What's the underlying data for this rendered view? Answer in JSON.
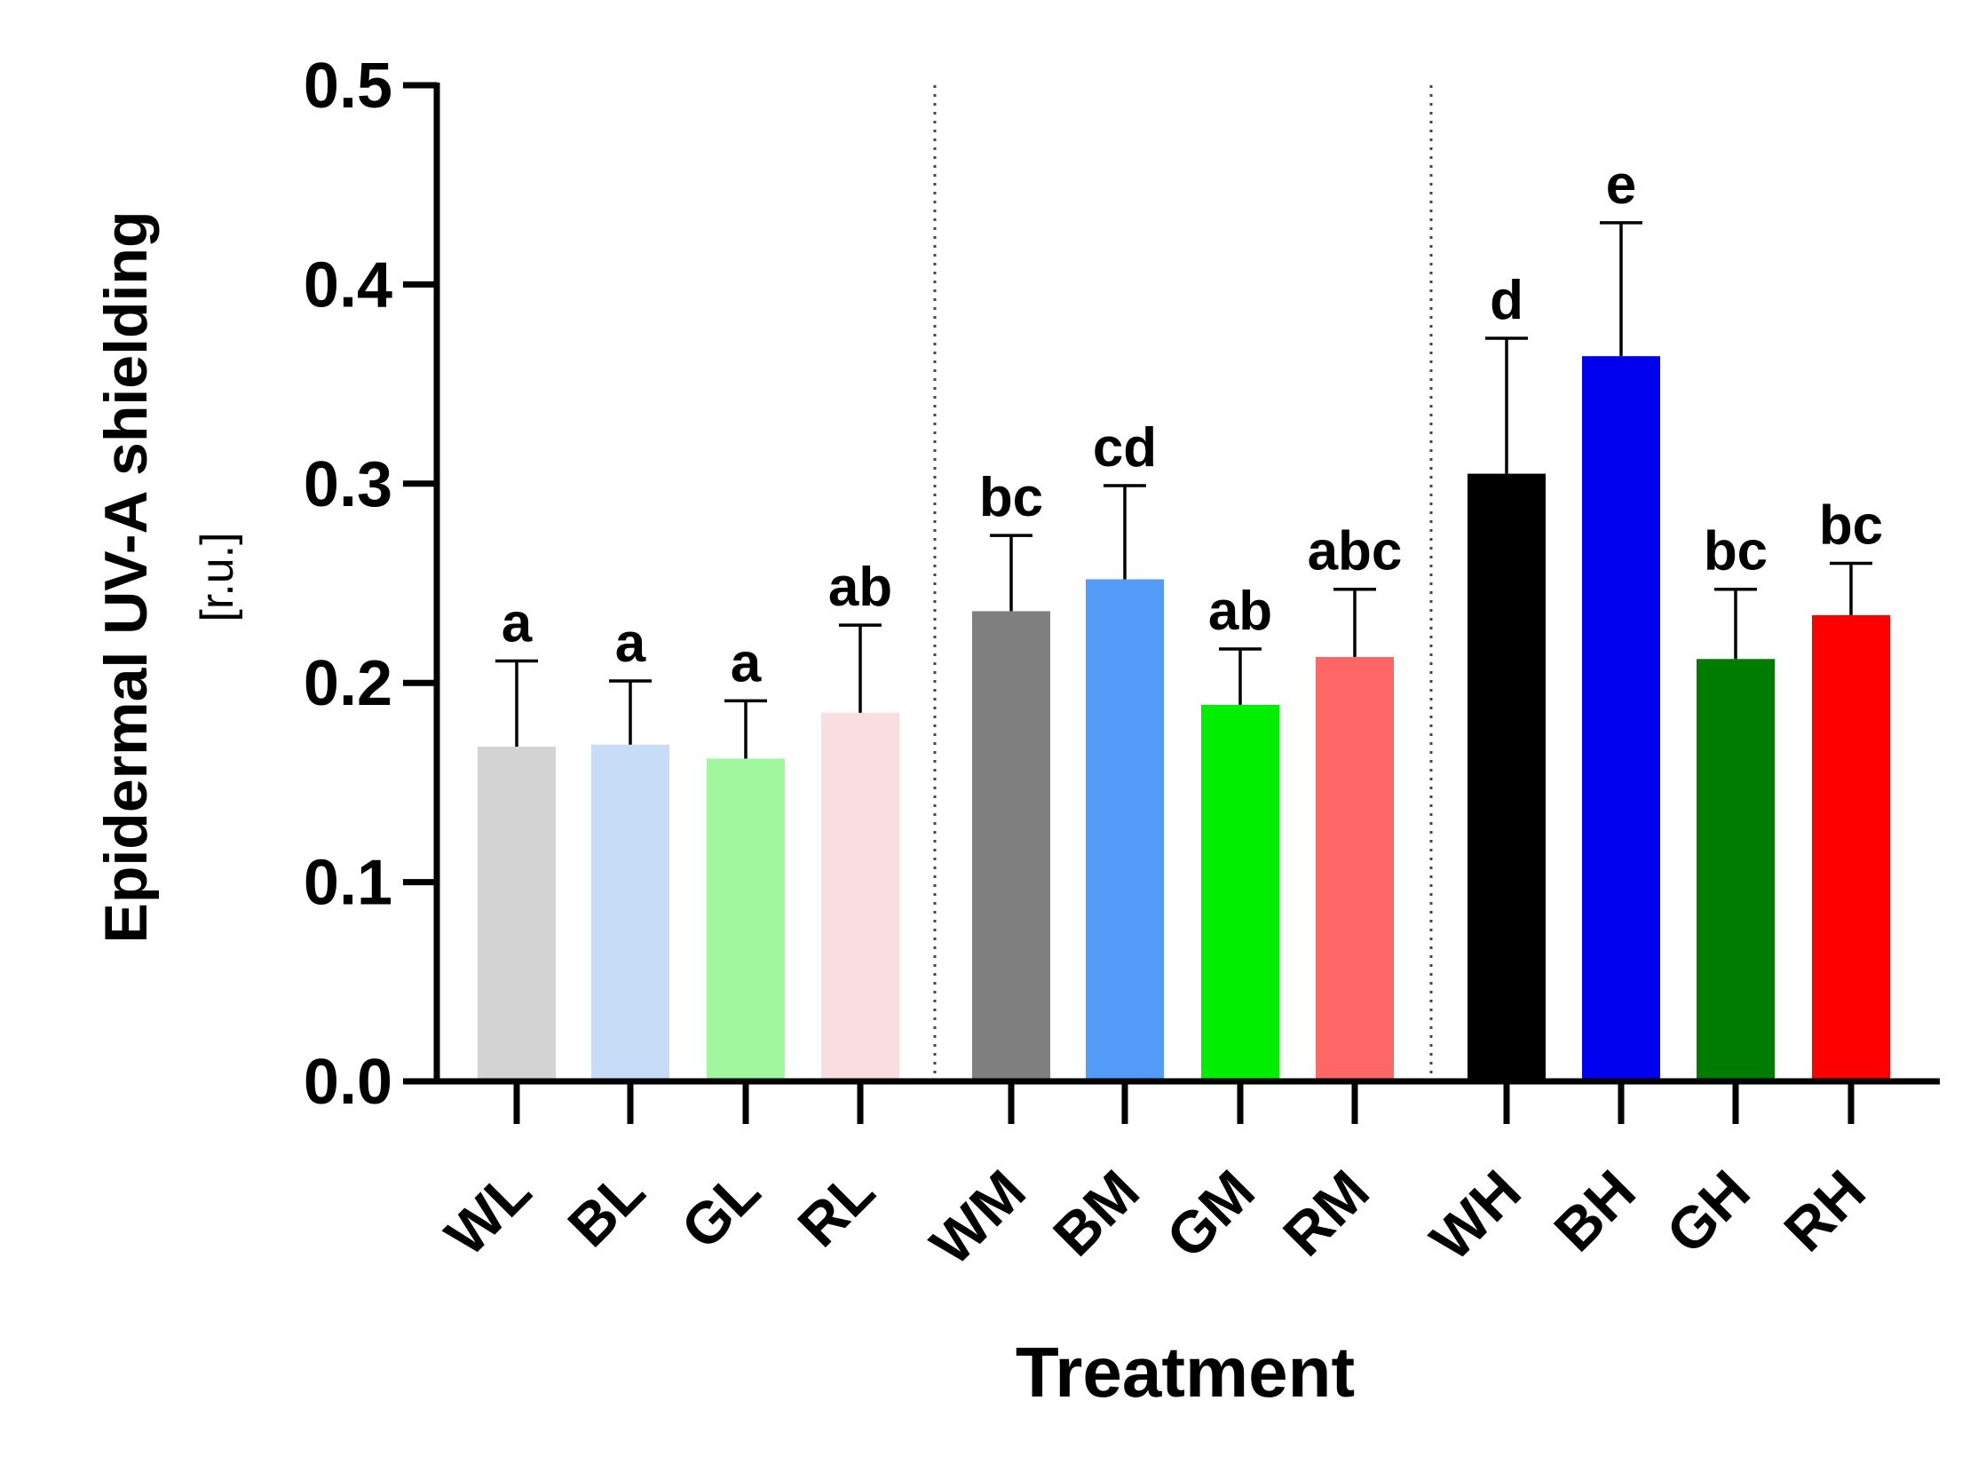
{
  "chart_data": {
    "type": "bar",
    "xlabel": "Treatment",
    "ylabel": "Epidermal UV-A shielding",
    "ylabel_unit": "[r.u.]",
    "ylim": [
      0,
      0.5
    ],
    "yticks": [
      "0.0",
      "0.1",
      "0.2",
      "0.3",
      "0.4",
      "0.5"
    ],
    "ytick_values": [
      0,
      0.1,
      0.2,
      0.3,
      0.4,
      0.5
    ],
    "grid": false,
    "group_separators": "dotted lines between treatment groups",
    "categories": [
      "WL",
      "BL",
      "GL",
      "RL",
      "WM",
      "BM",
      "GM",
      "RM",
      "WH",
      "BH",
      "GH",
      "RH"
    ],
    "values": [
      0.168,
      0.169,
      0.162,
      0.185,
      0.236,
      0.252,
      0.189,
      0.213,
      0.305,
      0.364,
      0.212,
      0.234
    ],
    "errors": [
      0.043,
      0.032,
      0.029,
      0.044,
      0.038,
      0.047,
      0.028,
      0.034,
      0.068,
      0.067,
      0.035,
      0.026
    ],
    "significance": [
      "a",
      "a",
      "a",
      "ab",
      "bc",
      "cd",
      "ab",
      "abc",
      "d",
      "e",
      "bc",
      "bc"
    ],
    "colors": [
      "#d3d3d3",
      "#c6dcf7",
      "#a0f79e",
      "#f9dde0",
      "#7f7f7f",
      "#529cf7",
      "#00ee00",
      "#ff6666",
      "#000000",
      "#0000ee",
      "#007c00",
      "#ff0000"
    ]
  }
}
